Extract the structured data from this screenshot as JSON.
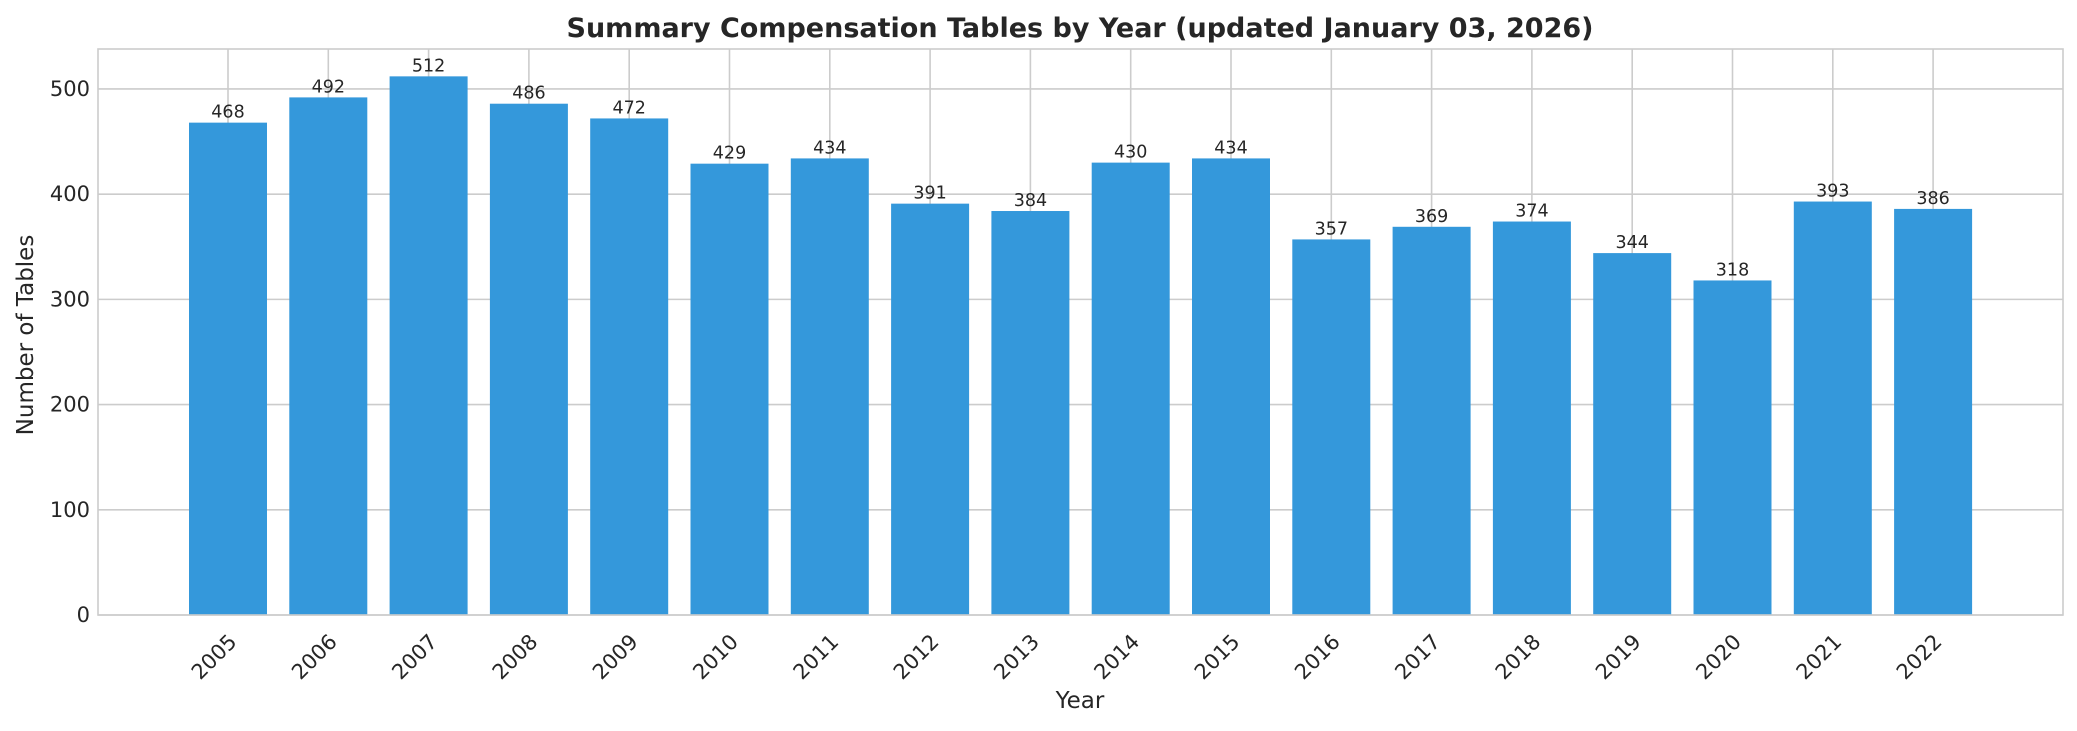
{
  "chart_data": {
    "type": "bar",
    "title": "Summary Compensation Tables by Year (updated January 03, 2026)",
    "xlabel": "Year",
    "ylabel": "Number of Tables",
    "categories": [
      "2005",
      "2006",
      "2007",
      "2008",
      "2009",
      "2010",
      "2011",
      "2012",
      "2013",
      "2014",
      "2015",
      "2016",
      "2017",
      "2018",
      "2019",
      "2020",
      "2021",
      "2022"
    ],
    "values": [
      468,
      492,
      512,
      486,
      472,
      429,
      434,
      391,
      384,
      430,
      434,
      357,
      369,
      374,
      344,
      318,
      393,
      386
    ],
    "data_labels": [
      "468",
      "492",
      "512",
      "486",
      "472",
      "429",
      "434",
      "391",
      "384",
      "430",
      "434",
      "357",
      "369",
      "374",
      "344",
      "318",
      "393",
      "386"
    ],
    "ylim": [
      0,
      538
    ],
    "yticks": [
      0,
      100,
      200,
      300,
      400,
      500
    ],
    "ytick_labels": [
      "0",
      "100",
      "200",
      "300",
      "400",
      "500"
    ],
    "grid": true,
    "bar_color": "#3498db"
  }
}
